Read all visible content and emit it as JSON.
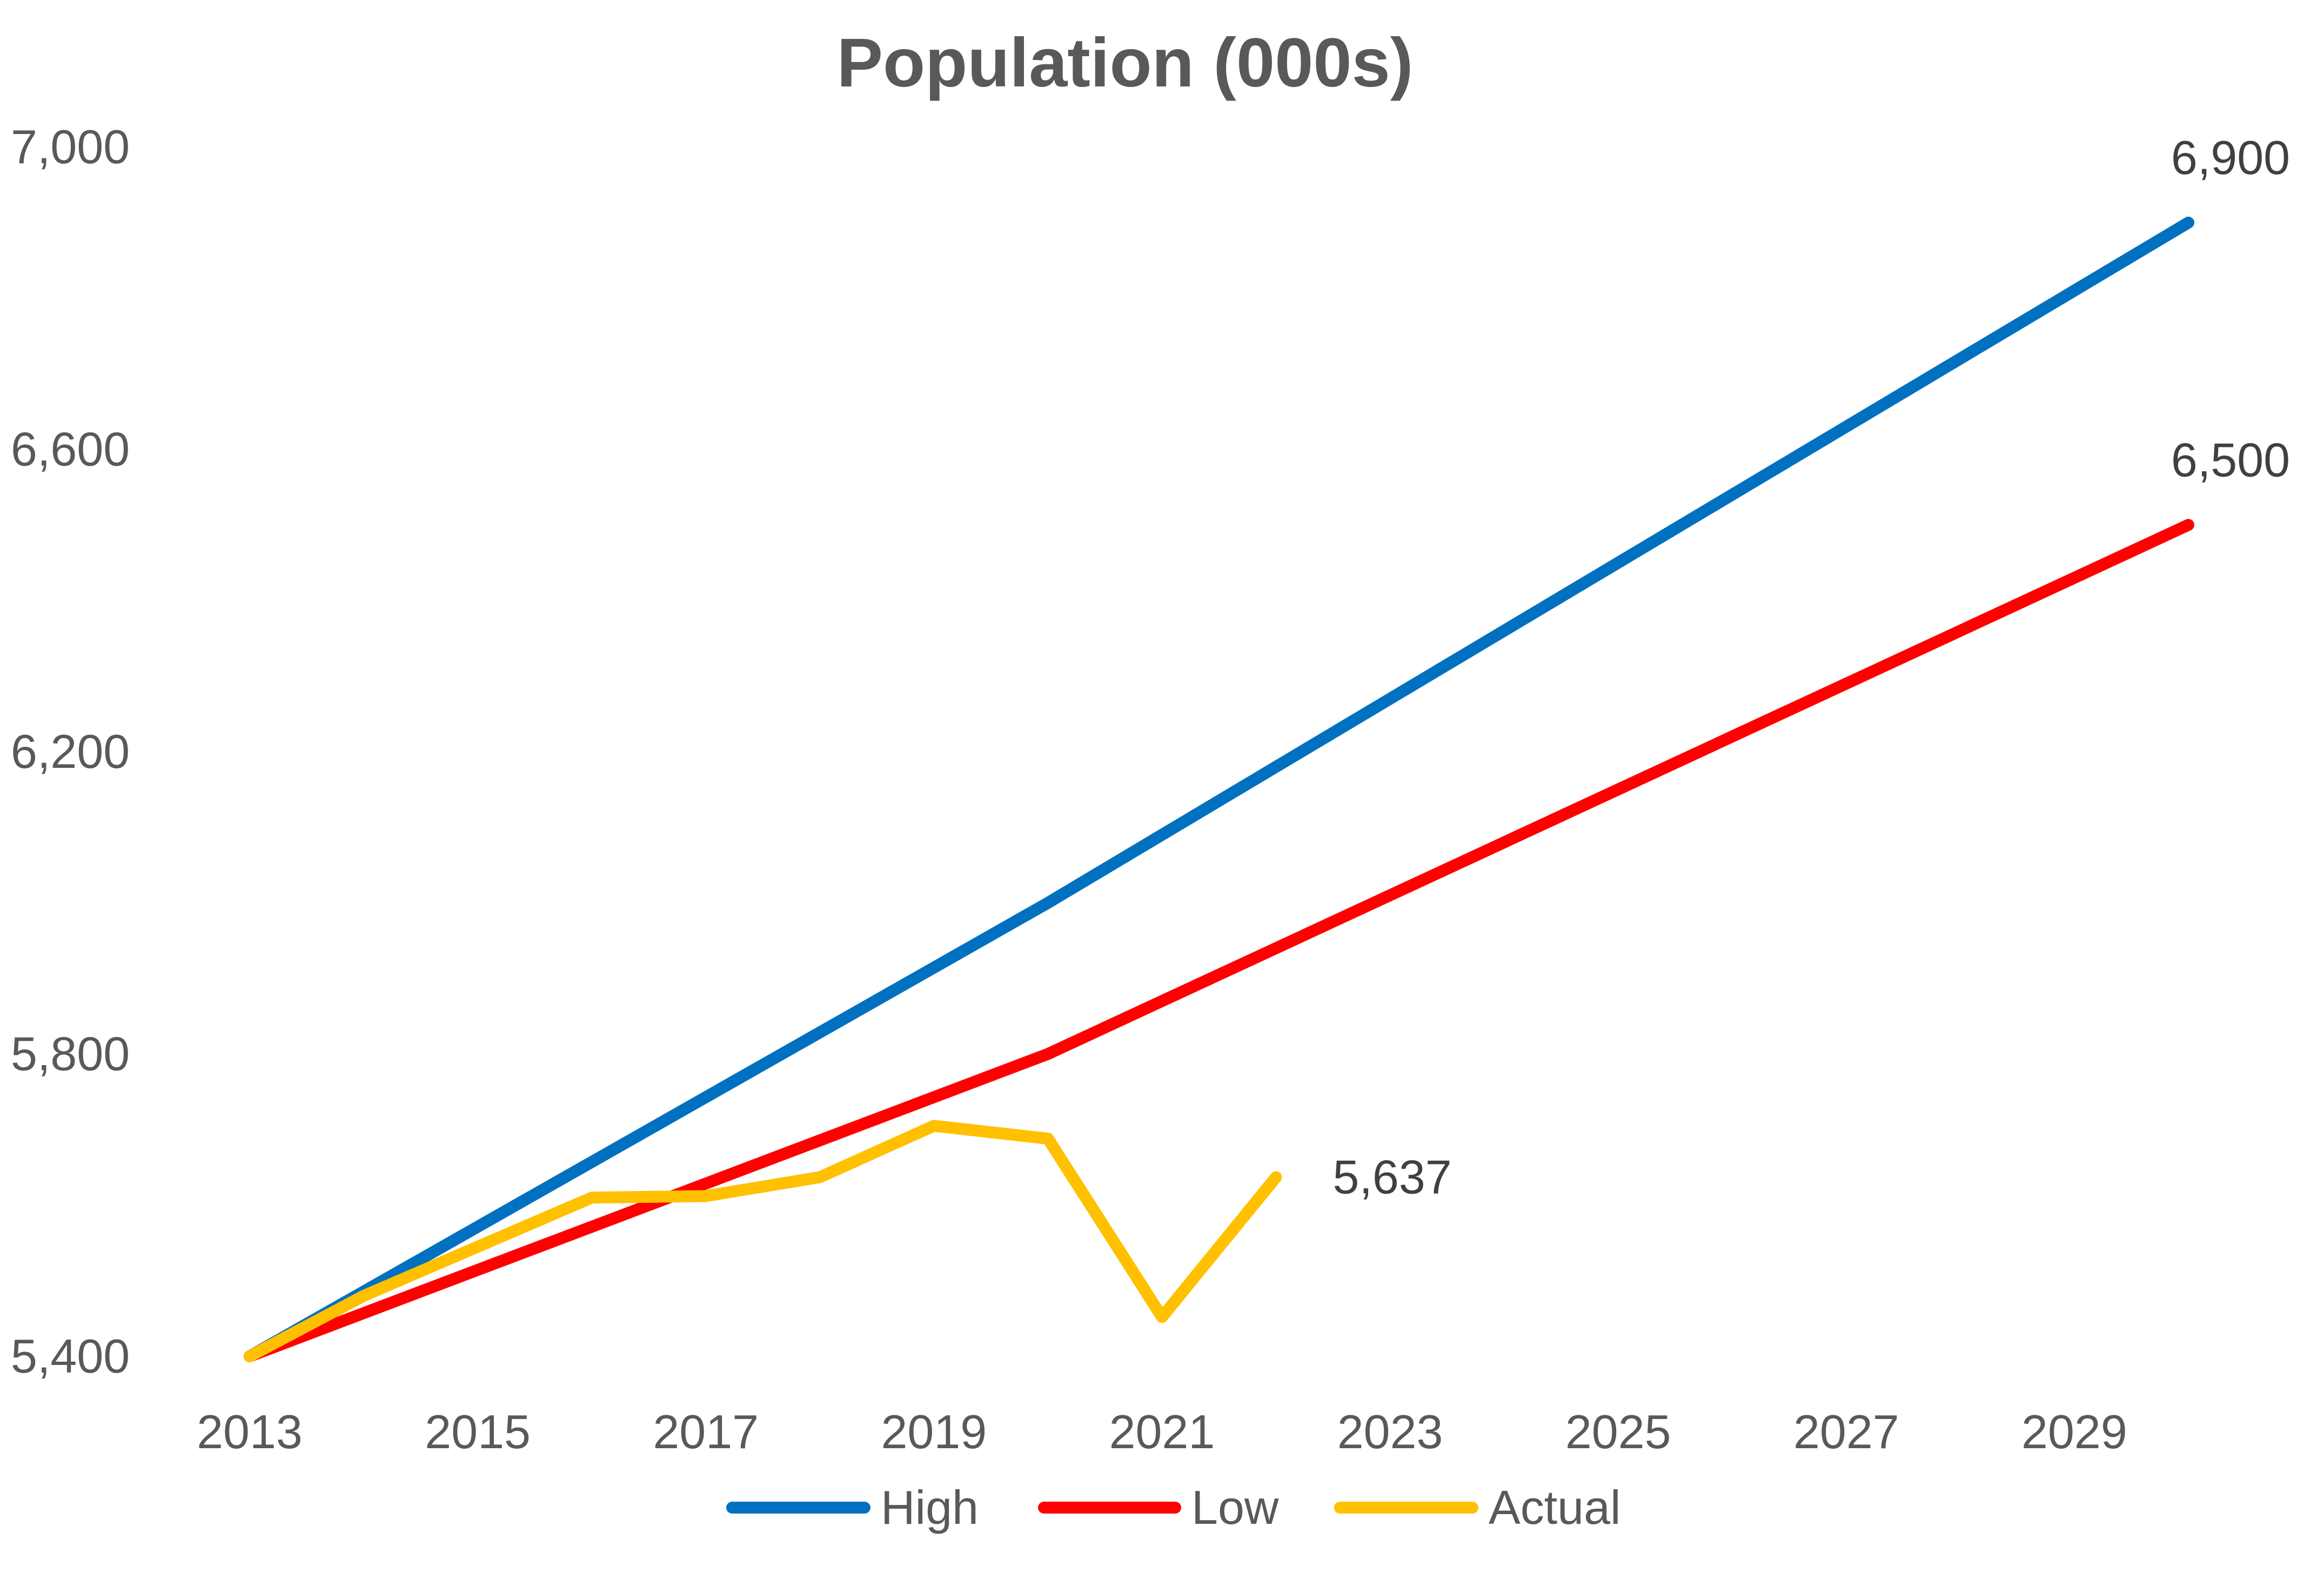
{
  "chart_data": {
    "type": "line",
    "title": "Population (000s)",
    "xlabel": "",
    "ylabel": "",
    "x": [
      2013,
      2014,
      2015,
      2016,
      2017,
      2018,
      2019,
      2020,
      2021,
      2022,
      2023,
      2024,
      2025,
      2026,
      2027,
      2028,
      2029,
      2030
    ],
    "x_ticks": [
      "2013",
      "2015",
      "2017",
      "2019",
      "2021",
      "2023",
      "2025",
      "2027",
      "2029"
    ],
    "y_ticks": [
      "5,400",
      "5,800",
      "6,200",
      "6,600",
      "7,000"
    ],
    "xlim": [
      2013,
      2030
    ],
    "ylim": [
      5400,
      7000
    ],
    "grid": false,
    "legend_position": "bottom",
    "series": [
      {
        "name": "High",
        "color": "#0070C0",
        "x": [
          2013,
          2020,
          2030
        ],
        "values": [
          5400,
          6000,
          6900
        ],
        "end_label": "6,900"
      },
      {
        "name": "Low",
        "color": "#FF0000",
        "x": [
          2013,
          2020,
          2030
        ],
        "values": [
          5400,
          5800,
          6500
        ],
        "end_label": "6,500"
      },
      {
        "name": "Actual",
        "color": "#FFC000",
        "x": [
          2013,
          2014,
          2015,
          2016,
          2017,
          2018,
          2019,
          2020,
          2021,
          2022
        ],
        "values": [
          5400,
          5480,
          5545,
          5610,
          5612,
          5637,
          5705,
          5688,
          5452,
          5637
        ],
        "end_label": "5,637"
      }
    ]
  }
}
